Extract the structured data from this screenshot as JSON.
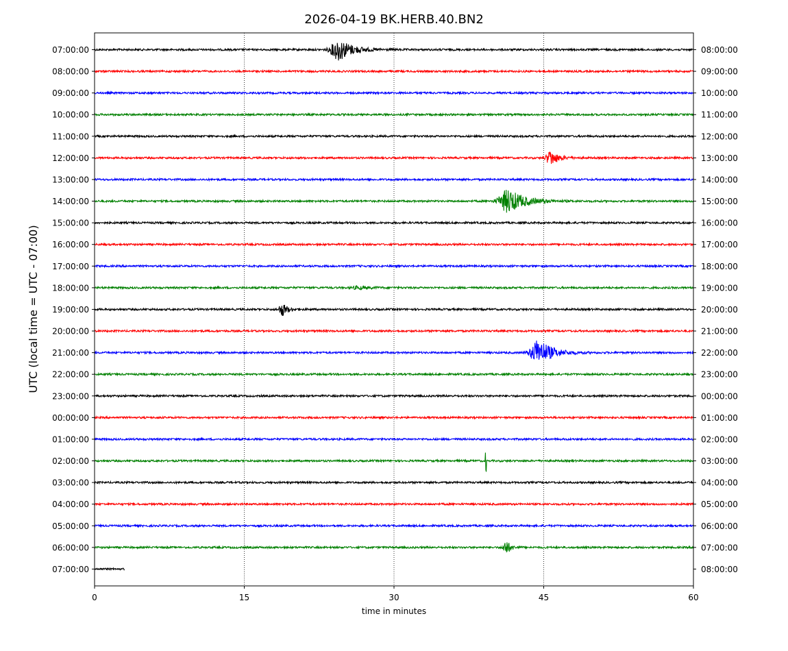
{
  "chart_data": {
    "type": "line",
    "title": "2026-04-19 BK.HERB.40.BN2",
    "xlabel": "time in minutes",
    "ylabel": "UTC (local time = UTC - 07:00)",
    "xlim": [
      0,
      60
    ],
    "x_ticks": [
      0,
      15,
      30,
      45,
      60
    ],
    "x_tick_labels": [
      "0",
      "15",
      "30",
      "45",
      "60"
    ],
    "vertical_grid_at": [
      15,
      30,
      45
    ],
    "colors": [
      "#000000",
      "#ff0000",
      "#0000ff",
      "#008000"
    ],
    "left_labels": [
      "07:00:00",
      "08:00:00",
      "09:00:00",
      "10:00:00",
      "11:00:00",
      "12:00:00",
      "13:00:00",
      "14:00:00",
      "15:00:00",
      "16:00:00",
      "17:00:00",
      "18:00:00",
      "19:00:00",
      "20:00:00",
      "21:00:00",
      "22:00:00",
      "23:00:00",
      "00:00:00",
      "01:00:00",
      "02:00:00",
      "03:00:00",
      "04:00:00",
      "05:00:00",
      "06:00:00",
      "07:00:00"
    ],
    "right_labels": [
      "08:00:00",
      "09:00:00",
      "10:00:00",
      "11:00:00",
      "12:00:00",
      "13:00:00",
      "14:00:00",
      "15:00:00",
      "16:00:00",
      "17:00:00",
      "18:00:00",
      "19:00:00",
      "20:00:00",
      "21:00:00",
      "22:00:00",
      "23:00:00",
      "00:00:00",
      "01:00:00",
      "02:00:00",
      "03:00:00",
      "04:00:00",
      "05:00:00",
      "06:00:00",
      "07:00:00",
      "08:00:00"
    ],
    "traces": [
      {
        "row": 0,
        "color": "#000000",
        "end_min": 60,
        "events": [
          {
            "t": 24.5,
            "amp": 1.0,
            "width": 2.2
          }
        ]
      },
      {
        "row": 1,
        "color": "#ff0000",
        "end_min": 60,
        "events": []
      },
      {
        "row": 2,
        "color": "#0000ff",
        "end_min": 60,
        "events": []
      },
      {
        "row": 3,
        "color": "#008000",
        "end_min": 60,
        "events": []
      },
      {
        "row": 4,
        "color": "#000000",
        "end_min": 60,
        "events": []
      },
      {
        "row": 5,
        "color": "#ff0000",
        "end_min": 60,
        "events": [
          {
            "t": 45.7,
            "amp": 0.7,
            "width": 1.2
          }
        ]
      },
      {
        "row": 6,
        "color": "#0000ff",
        "end_min": 60,
        "events": []
      },
      {
        "row": 7,
        "color": "#008000",
        "end_min": 60,
        "events": [
          {
            "t": 41.5,
            "amp": 1.1,
            "width": 2.6
          }
        ]
      },
      {
        "row": 8,
        "color": "#000000",
        "end_min": 60,
        "events": []
      },
      {
        "row": 9,
        "color": "#ff0000",
        "end_min": 60,
        "events": []
      },
      {
        "row": 10,
        "color": "#0000ff",
        "end_min": 60,
        "events": []
      },
      {
        "row": 11,
        "color": "#008000",
        "end_min": 60,
        "events": [
          {
            "t": 26.5,
            "amp": 0.12,
            "width": 2.0
          }
        ]
      },
      {
        "row": 12,
        "color": "#000000",
        "end_min": 60,
        "events": [
          {
            "t": 18.8,
            "amp": 0.6,
            "width": 0.9
          }
        ]
      },
      {
        "row": 13,
        "color": "#ff0000",
        "end_min": 60,
        "events": []
      },
      {
        "row": 14,
        "color": "#0000ff",
        "end_min": 60,
        "events": [
          {
            "t": 44.5,
            "amp": 1.2,
            "width": 2.2
          }
        ]
      },
      {
        "row": 15,
        "color": "#008000",
        "end_min": 60,
        "events": []
      },
      {
        "row": 16,
        "color": "#000000",
        "end_min": 60,
        "events": []
      },
      {
        "row": 17,
        "color": "#ff0000",
        "end_min": 60,
        "events": []
      },
      {
        "row": 18,
        "color": "#0000ff",
        "end_min": 60,
        "events": []
      },
      {
        "row": 19,
        "color": "#008000",
        "end_min": 60,
        "events": [
          {
            "t": 39.2,
            "amp": 0.95,
            "width": 0.05
          }
        ]
      },
      {
        "row": 20,
        "color": "#000000",
        "end_min": 60,
        "events": []
      },
      {
        "row": 21,
        "color": "#ff0000",
        "end_min": 60,
        "events": []
      },
      {
        "row": 22,
        "color": "#0000ff",
        "end_min": 60,
        "events": []
      },
      {
        "row": 23,
        "color": "#008000",
        "end_min": 60,
        "events": [
          {
            "t": 41.2,
            "amp": 0.7,
            "width": 0.7
          }
        ]
      },
      {
        "row": 24,
        "color": "#000000",
        "end_min": 3,
        "events": []
      }
    ]
  }
}
